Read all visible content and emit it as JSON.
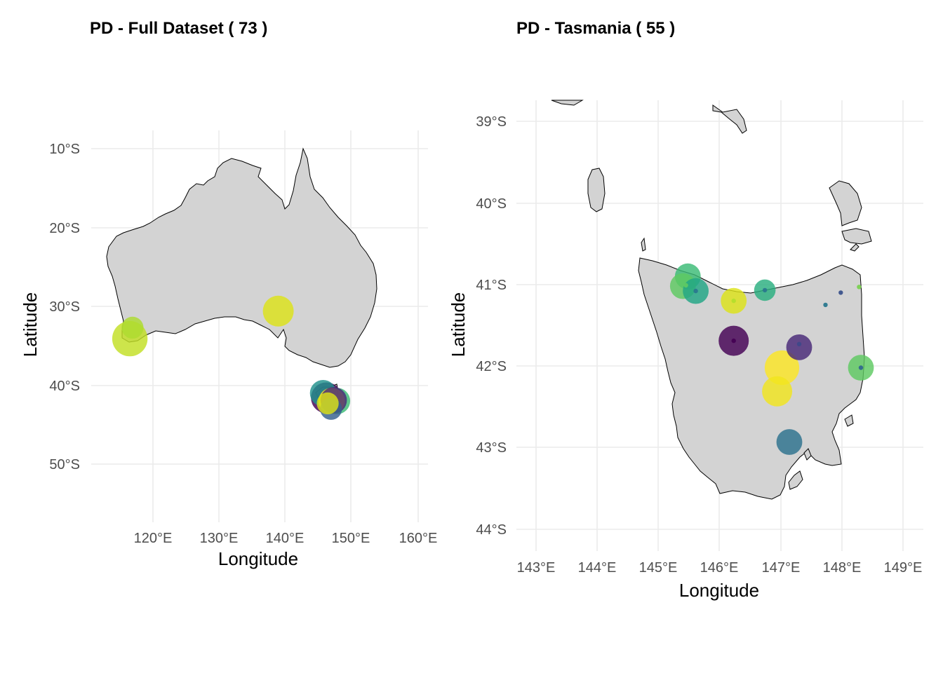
{
  "panels": [
    {
      "title": "PD - Full Dataset ( 73 )",
      "xlabel": "Longitude",
      "ylabel": "Latitude",
      "x_ticks": [
        "120°E",
        "130°E",
        "140°E",
        "150°E",
        "160°E"
      ],
      "y_ticks": [
        "10°S",
        "20°S",
        "30°S",
        "40°S",
        "50°S"
      ]
    },
    {
      "title": "PD - Tasmania ( 55 )",
      "xlabel": "Longitude",
      "ylabel": "Latitude",
      "x_ticks": [
        "143°E",
        "144°E",
        "145°E",
        "146°E",
        "147°E",
        "148°E",
        "149°E"
      ],
      "y_ticks": [
        "39°S",
        "40°S",
        "41°S",
        "42°S",
        "43°S",
        "44°S"
      ]
    }
  ],
  "colors": {
    "land_fill": "#d3d3d3",
    "land_stroke": "#000000",
    "grid": "#ebebeb",
    "palette": "viridis"
  },
  "chart_data": [
    {
      "type": "scatter",
      "map_region": "Australia",
      "title": "PD - Full Dataset ( 73 )",
      "xlabel": "Longitude",
      "ylabel": "Latitude",
      "xlim": [
        110.5,
        162.3
      ],
      "ylim": [
        -57,
        -4.8
      ],
      "grid": true,
      "points": [
        {
          "lon": 139.0,
          "lat": -30.6,
          "size": 5,
          "color": "#dde318"
        },
        {
          "lon": 116.5,
          "lat": -34.1,
          "size": 6,
          "color": "#c2df23"
        },
        {
          "lon": 116.9,
          "lat": -32.7,
          "size": 3,
          "color": "#addc30"
        },
        {
          "lon": 145.8,
          "lat": -41.0,
          "size": 4,
          "color": "#21918c"
        },
        {
          "lon": 147.9,
          "lat": -42.0,
          "size": 4,
          "color": "#3bbb75"
        },
        {
          "lon": 146.3,
          "lat": -41.6,
          "size": 5,
          "color": "#440154"
        },
        {
          "lon": 147.1,
          "lat": -42.0,
          "size": 4,
          "color": "#fde725"
        },
        {
          "lon": 147.0,
          "lat": -43.0,
          "size": 3,
          "color": "#355f8d"
        },
        {
          "lon": 147.4,
          "lat": -41.9,
          "size": 4,
          "color": "#482878"
        },
        {
          "lon": 146.5,
          "lat": -42.3,
          "size": 3,
          "color": "#dde318"
        }
      ]
    },
    {
      "type": "scatter",
      "map_region": "Tasmania",
      "title": "PD - Tasmania ( 55 )",
      "xlabel": "Longitude",
      "ylabel": "Latitude",
      "xlim": [
        142.65,
        149.35
      ],
      "ylim": [
        -44.25,
        -38.75
      ],
      "grid": true,
      "points": [
        {
          "lon": 145.48,
          "lat": -40.9,
          "size": 4,
          "color": "#3bbb75"
        },
        {
          "lon": 145.4,
          "lat": -41.02,
          "size": 4,
          "color": "#5ec962"
        },
        {
          "lon": 145.45,
          "lat": -41.01,
          "size": 1,
          "color": "#5ec962"
        },
        {
          "lon": 145.61,
          "lat": -41.08,
          "size": 4,
          "color": "#21a685"
        },
        {
          "lon": 145.61,
          "lat": -41.08,
          "size": 1,
          "color": "#2a788e"
        },
        {
          "lon": 146.23,
          "lat": -41.2,
          "size": 4,
          "color": "#dde318"
        },
        {
          "lon": 146.23,
          "lat": -41.2,
          "size": 1,
          "color": "#b5de2b"
        },
        {
          "lon": 146.74,
          "lat": -41.07,
          "size": 3,
          "color": "#29af7f"
        },
        {
          "lon": 146.74,
          "lat": -41.07,
          "size": 1,
          "color": "#2a788e"
        },
        {
          "lon": 147.98,
          "lat": -41.1,
          "size": 1,
          "color": "#3b528b"
        },
        {
          "lon": 147.73,
          "lat": -41.25,
          "size": 1,
          "color": "#2a788e"
        },
        {
          "lon": 148.28,
          "lat": -41.03,
          "size": 1,
          "color": "#7ad151"
        },
        {
          "lon": 146.23,
          "lat": -41.69,
          "size": 5,
          "color": "#440154"
        },
        {
          "lon": 146.23,
          "lat": -41.69,
          "size": 1,
          "color": "#440154"
        },
        {
          "lon": 147.3,
          "lat": -41.77,
          "size": 4,
          "color": "#482878"
        },
        {
          "lon": 147.3,
          "lat": -41.73,
          "size": 1,
          "color": "#3e4989"
        },
        {
          "lon": 147.02,
          "lat": -42.02,
          "size": 6,
          "color": "#fde725"
        },
        {
          "lon": 146.94,
          "lat": -42.31,
          "size": 5,
          "color": "#f1e51d"
        },
        {
          "lon": 148.31,
          "lat": -42.02,
          "size": 4,
          "color": "#5ec962"
        },
        {
          "lon": 148.31,
          "lat": -42.02,
          "size": 1,
          "color": "#31688e"
        },
        {
          "lon": 147.14,
          "lat": -42.93,
          "size": 4,
          "color": "#2c728e"
        }
      ]
    }
  ]
}
